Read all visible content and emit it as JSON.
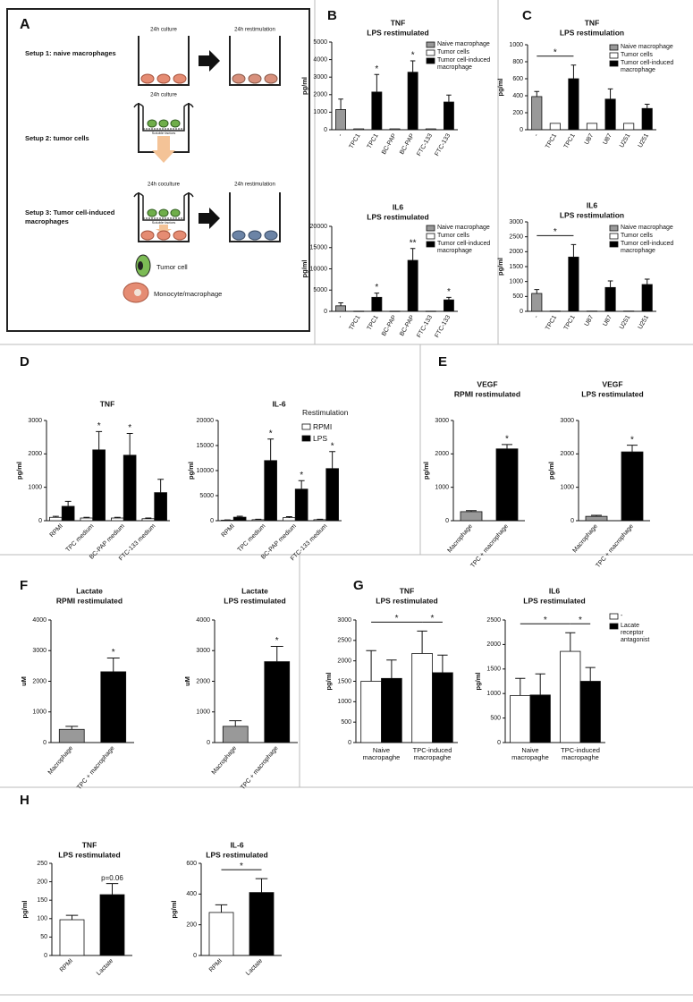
{
  "diagram": {
    "panel": "A",
    "setups": [
      {
        "label": "Setup 1: naive macrophages",
        "steps": [
          "24h culture",
          "24h restimulation"
        ]
      },
      {
        "label": "Setup 2: tumor cells",
        "steps": [
          "24h culture"
        ],
        "insert_label": "Soluble factors"
      },
      {
        "label": "Setup 3: Tumor cell-induced macrophages",
        "steps": [
          "24h coculture",
          "24h restimulation"
        ],
        "insert_label": "Soluble factors"
      }
    ],
    "legend": [
      "Tumor cell",
      "Monocyte/macrophage"
    ]
  },
  "chart_data": [
    {
      "type": "bar",
      "panel": "B",
      "title": "TNF",
      "subtitle": "LPS restimulated",
      "y_label": "pg/ml",
      "categories": [
        "-",
        "TPC1",
        "TPC1",
        "BC-PAP",
        "BC-PAP",
        "FTC-133",
        "FTC-133"
      ],
      "ylim": [
        0,
        5000
      ],
      "yticks": [
        0,
        1000,
        2000,
        3000,
        4000,
        5000
      ],
      "legend": true,
      "series": [
        {
          "name": "Naive macrophage",
          "color": "#999999",
          "values": [
            1150,
            null,
            null,
            null,
            null,
            null,
            null
          ],
          "errors": [
            600,
            null,
            null,
            null,
            null,
            null,
            null
          ]
        },
        {
          "name": "Tumor cells",
          "color": "#ffffff",
          "values": [
            null,
            50,
            null,
            50,
            null,
            50,
            null
          ]
        },
        {
          "name": "Tumor cell-induced macrophage",
          "color": "#000000",
          "values": [
            null,
            null,
            2150,
            null,
            3280,
            null,
            1580
          ],
          "errors": [
            null,
            null,
            1000,
            null,
            650,
            null,
            400
          ],
          "significance": [
            null,
            null,
            "*",
            null,
            "*",
            null,
            null
          ]
        }
      ]
    },
    {
      "type": "bar",
      "title": "IL6",
      "subtitle": "LPS restimulated",
      "y_label": "pg/ml",
      "categories": [
        "-",
        "TPC1",
        "TPC1",
        "BC-PAP",
        "BC-PAP",
        "FTC-133",
        "FTC-133"
      ],
      "ylim": [
        0,
        20000
      ],
      "yticks": [
        0,
        5000,
        10000,
        15000,
        20000
      ],
      "legend": true,
      "series": [
        {
          "name": "Naive macrophage",
          "color": "#999999",
          "values": [
            1300,
            null,
            null,
            null,
            null,
            null,
            null
          ],
          "errors": [
            700,
            null,
            null,
            null,
            null,
            null,
            null
          ]
        },
        {
          "name": "Tumor cells",
          "color": "#ffffff",
          "values": [
            null,
            50,
            null,
            50,
            null,
            50,
            null
          ]
        },
        {
          "name": "Tumor cell-induced macrophage",
          "color": "#000000",
          "values": [
            null,
            null,
            3300,
            null,
            12000,
            null,
            2700
          ],
          "errors": [
            null,
            null,
            1000,
            null,
            2800,
            null,
            600
          ],
          "significance": [
            null,
            null,
            "*",
            null,
            "**",
            null,
            "*"
          ]
        }
      ]
    },
    {
      "type": "bar",
      "panel": "C",
      "title": "TNF",
      "subtitle": "LPS restimulation",
      "y_label": "pg/ml",
      "categories": [
        "-",
        "TPC1",
        "TPC1",
        "U87",
        "U87",
        "U251",
        "U251"
      ],
      "ylim": [
        0,
        1000
      ],
      "yticks": [
        0,
        200,
        400,
        600,
        800,
        1000
      ],
      "legend": true,
      "series": [
        {
          "name": "Naive macrophage",
          "color": "#999999",
          "values": [
            390,
            null,
            null,
            null,
            null,
            null,
            null
          ],
          "errors": [
            60,
            null,
            null,
            null,
            null,
            null,
            null
          ]
        },
        {
          "name": "Tumor cells",
          "color": "#ffffff",
          "values": [
            null,
            75,
            null,
            75,
            null,
            75,
            null
          ]
        },
        {
          "name": "Tumor cell-induced macrophage",
          "color": "#000000",
          "values": [
            null,
            null,
            600,
            null,
            360,
            null,
            250
          ],
          "errors": [
            null,
            null,
            160,
            null,
            120,
            null,
            50
          ]
        }
      ],
      "comparisons": [
        {
          "between": [
            [
              0,
              0
            ],
            [
              2,
              2
            ]
          ],
          "label": "*"
        }
      ]
    },
    {
      "type": "bar",
      "title": "IL6",
      "subtitle": "LPS restimulation",
      "y_label": "pg/ml",
      "categories": [
        "-",
        "TPC1",
        "TPC1",
        "U87",
        "U87",
        "U251",
        "U251"
      ],
      "ylim": [
        0,
        3000
      ],
      "yticks": [
        0,
        500,
        1000,
        1500,
        2000,
        2500,
        3000
      ],
      "legend": true,
      "series": [
        {
          "name": "Naive macrophage",
          "color": "#999999",
          "values": [
            600,
            null,
            null,
            null,
            null,
            null,
            null
          ],
          "errors": [
            130,
            null,
            null,
            null,
            null,
            null,
            null
          ]
        },
        {
          "name": "Tumor cells",
          "color": "#ffffff",
          "values": [
            null,
            10,
            null,
            10,
            null,
            10,
            null
          ]
        },
        {
          "name": "Tumor cell-induced macrophage",
          "color": "#000000",
          "values": [
            null,
            null,
            1820,
            null,
            800,
            null,
            900
          ],
          "errors": [
            null,
            null,
            420,
            null,
            220,
            null,
            180
          ]
        }
      ],
      "comparisons": [
        {
          "between": [
            [
              0,
              0
            ],
            [
              2,
              2
            ]
          ],
          "label": "*"
        }
      ]
    },
    {
      "type": "bar",
      "panel": "D",
      "title": "TNF",
      "y_label": "pg/ml",
      "categories": [
        "RPMI",
        "TPC medium",
        "BC-PAP medium",
        "FTC-133 medium"
      ],
      "ylim": [
        0,
        3000
      ],
      "yticks": [
        0,
        1000,
        2000,
        3000
      ],
      "legend": false,
      "series": [
        {
          "name": "RPMI",
          "color": "#ffffff",
          "values": [
            100,
            80,
            80,
            60
          ],
          "errors": [
            30,
            20,
            20,
            20
          ]
        },
        {
          "name": "LPS",
          "color": "#000000",
          "values": [
            430,
            2120,
            1960,
            840
          ],
          "errors": [
            150,
            550,
            650,
            400
          ],
          "significance": [
            null,
            "*",
            "*",
            null
          ]
        }
      ]
    },
    {
      "type": "bar",
      "title": "IL-6",
      "y_label": "pg/ml",
      "categories": [
        "RPMI",
        "TPC medium",
        "BC-PAP medium",
        "FTC-133 medium"
      ],
      "ylim": [
        0,
        20000
      ],
      "yticks": [
        0,
        5000,
        10000,
        15000,
        20000
      ],
      "legend": true,
      "legend_title": "Restimulation",
      "series": [
        {
          "name": "RPMI",
          "color": "#ffffff",
          "values": [
            100,
            200,
            600,
            200
          ],
          "errors": [
            50,
            100,
            200,
            100
          ]
        },
        {
          "name": "LPS",
          "color": "#000000",
          "values": [
            700,
            12000,
            6300,
            10400
          ],
          "errors": [
            200,
            4300,
            1700,
            3400
          ],
          "significance": [
            null,
            "*",
            "*",
            "*"
          ]
        }
      ]
    },
    {
      "type": "bar",
      "panel": "E",
      "title": "VEGF",
      "subtitle": "RPMI restimulated",
      "y_label": "pg/ml",
      "categories": [
        "Macrophage",
        "TPC + macrophage"
      ],
      "ylim": [
        0,
        3000
      ],
      "yticks": [
        0,
        1000,
        2000,
        3000
      ],
      "series": [
        {
          "colors": [
            "#999999",
            "#000000"
          ],
          "values": [
            270,
            2150
          ],
          "errors": [
            30,
            130
          ],
          "significance": [
            null,
            "*"
          ]
        }
      ]
    },
    {
      "type": "bar",
      "title": "VEGF",
      "subtitle": "LPS restimulated",
      "y_label": "pg/ml",
      "categories": [
        "Macrophage",
        "TPC + macrophage"
      ],
      "ylim": [
        0,
        3000
      ],
      "yticks": [
        0,
        1000,
        2000,
        3000
      ],
      "series": [
        {
          "colors": [
            "#999999",
            "#000000"
          ],
          "values": [
            130,
            2060
          ],
          "errors": [
            30,
            200
          ],
          "significance": [
            null,
            "*"
          ]
        }
      ]
    },
    {
      "type": "bar",
      "panel": "F",
      "title": "Lactate",
      "subtitle": "RPMI restimulated",
      "y_label": "uM",
      "categories": [
        "Macrophage",
        "TPC + macrophage"
      ],
      "ylim": [
        0,
        4000
      ],
      "yticks": [
        0,
        1000,
        2000,
        3000,
        4000
      ],
      "series": [
        {
          "colors": [
            "#999999",
            "#000000"
          ],
          "values": [
            430,
            2310
          ],
          "errors": [
            100,
            450
          ],
          "significance": [
            null,
            "*"
          ]
        }
      ]
    },
    {
      "type": "bar",
      "title": "Lactate",
      "subtitle": "LPS restimulated",
      "y_label": "uM",
      "categories": [
        "Macrophage",
        "TPC + macrophage"
      ],
      "ylim": [
        0,
        4000
      ],
      "yticks": [
        0,
        1000,
        2000,
        3000,
        4000
      ],
      "series": [
        {
          "colors": [
            "#999999",
            "#000000"
          ],
          "values": [
            530,
            2640
          ],
          "errors": [
            180,
            500
          ],
          "significance": [
            null,
            "*"
          ]
        }
      ]
    },
    {
      "type": "bar",
      "panel": "G",
      "title": "TNF",
      "subtitle": "LPS restimulated",
      "y_label": "pg/ml",
      "categories": [
        "Naive macropaghe",
        "TPC-induced macropaghe"
      ],
      "ylim": [
        0,
        3000
      ],
      "yticks": [
        0,
        500,
        1000,
        1500,
        2000,
        2500,
        3000
      ],
      "legend": false,
      "series": [
        {
          "name": "-",
          "color": "#ffffff",
          "values": [
            1500,
            2180
          ],
          "errors": [
            750,
            550
          ]
        },
        {
          "name": "Lacate receptor antagonist",
          "color": "#000000",
          "values": [
            1570,
            1710
          ],
          "errors": [
            450,
            430
          ]
        }
      ],
      "comparisons": [
        {
          "between": [
            [
              0,
              0
            ],
            [
              0,
              1
            ]
          ],
          "label": "*"
        },
        {
          "between": [
            [
              0,
              1
            ],
            [
              1,
              1
            ]
          ],
          "label": "*"
        }
      ]
    },
    {
      "type": "bar",
      "title": "IL6",
      "subtitle": "LPS restimulated",
      "y_label": "pg/ml",
      "categories": [
        "Naive macropaghe",
        "TPC-induced macropaghe"
      ],
      "ylim": [
        0,
        2500
      ],
      "yticks": [
        0,
        500,
        1000,
        1500,
        2000,
        2500
      ],
      "legend": true,
      "series": [
        {
          "name": "-",
          "color": "#ffffff",
          "values": [
            960,
            1860
          ],
          "errors": [
            350,
            380
          ]
        },
        {
          "name": "Lacate receptor antagonist",
          "color": "#000000",
          "values": [
            970,
            1250
          ],
          "errors": [
            430,
            280
          ]
        }
      ],
      "comparisons": [
        {
          "between": [
            [
              0,
              0
            ],
            [
              0,
              1
            ]
          ],
          "label": "*"
        },
        {
          "between": [
            [
              0,
              1
            ],
            [
              1,
              1
            ]
          ],
          "label": "*"
        }
      ]
    },
    {
      "type": "bar",
      "panel": "H",
      "title": "TNF",
      "subtitle": "LPS restimulated",
      "y_label": "pg/ml",
      "categories": [
        "RPMI",
        "Lactate"
      ],
      "ylim": [
        0,
        250
      ],
      "yticks": [
        0,
        50,
        100,
        150,
        200,
        250
      ],
      "series": [
        {
          "colors": [
            "#ffffff",
            "#000000"
          ],
          "values": [
            97,
            165
          ],
          "errors": [
            12,
            30
          ],
          "significance": [
            null,
            "p=0.06"
          ]
        }
      ]
    },
    {
      "type": "bar",
      "title": "IL-6",
      "subtitle": "LPS restimulated",
      "y_label": "pg/ml",
      "categories": [
        "RPMI",
        "Lactate"
      ],
      "ylim": [
        0,
        600
      ],
      "yticks": [
        0,
        200,
        400,
        600
      ],
      "series": [
        {
          "colors": [
            "#ffffff",
            "#000000"
          ],
          "values": [
            280,
            410
          ],
          "errors": [
            50,
            90
          ]
        }
      ],
      "comparisons": [
        {
          "between": [
            [
              0,
              0
            ],
            [
              0,
              1
            ]
          ],
          "label": "*"
        }
      ]
    }
  ]
}
